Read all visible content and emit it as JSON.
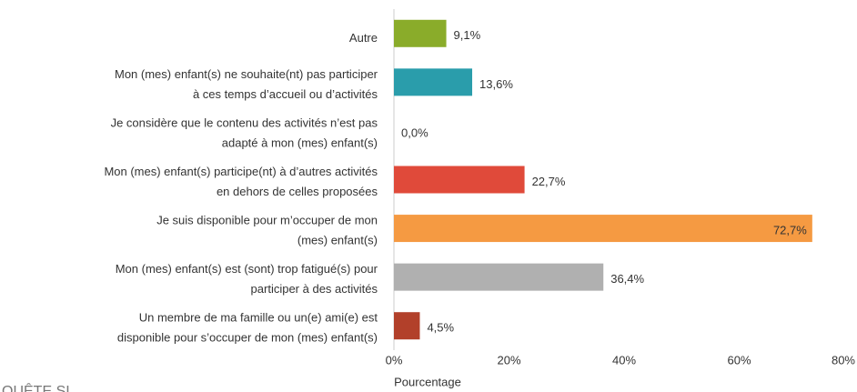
{
  "chart_data": {
    "type": "bar",
    "orientation": "horizontal",
    "categories": [
      [
        "Autre"
      ],
      [
        "Mon (mes) enfant(s) ne souhaite(nt) pas participer",
        "à ces temps d’accueil ou d’activités"
      ],
      [
        "Je considère que le contenu des activités n’est pas",
        "adapté à mon (mes) enfant(s)"
      ],
      [
        "Mon (mes) enfant(s) participe(nt) à d’autres activités",
        "en dehors de celles proposées"
      ],
      [
        "Je suis disponible pour m’occuper de mon",
        "(mes) enfant(s)"
      ],
      [
        "Mon (mes) enfant(s) est (sont) trop fatigué(s) pour",
        "participer à des activités"
      ],
      [
        "Un membre de ma famille ou un(e) ami(e) est",
        "disponible pour s’occuper de mon (mes) enfant(s)"
      ]
    ],
    "values": [
      9.1,
      13.6,
      0.0,
      22.7,
      72.7,
      36.4,
      4.5
    ],
    "value_labels": [
      "9,1%",
      "13,6%",
      "0,0%",
      "22,7%",
      "72,7%",
      "36,4%",
      "4,5%"
    ],
    "colors": [
      "#8aac2a",
      "#2a9dab",
      "#888888",
      "#e04a3a",
      "#f59a42",
      "#b0b0b0",
      "#b2402a"
    ],
    "xlim": [
      0,
      80
    ],
    "xticks": [
      {
        "value": 0,
        "label": "0%"
      },
      {
        "value": 20,
        "label": "20%"
      },
      {
        "value": 40,
        "label": "40%"
      },
      {
        "value": 60,
        "label": "60%"
      },
      {
        "value": 80,
        "label": "80%"
      }
    ],
    "xlabel": "Pourcentage",
    "fragment": "QUÊTE SI"
  }
}
